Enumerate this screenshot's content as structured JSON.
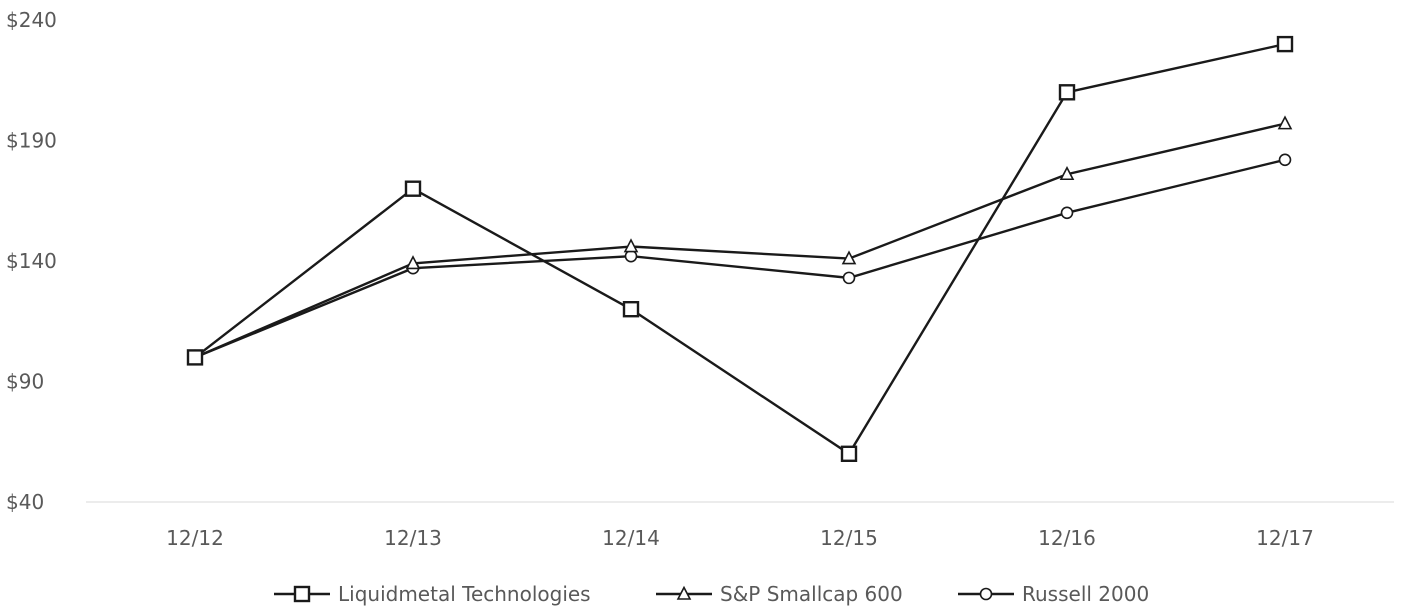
{
  "chart_data": {
    "type": "line",
    "title": "",
    "xlabel": "",
    "ylabel": "",
    "categories": [
      "12/12",
      "12/13",
      "12/14",
      "12/15",
      "12/16",
      "12/17"
    ],
    "y_ticks": [
      "$40",
      "$90",
      "$140",
      "$190",
      "$240"
    ],
    "y_tick_values": [
      40,
      90,
      140,
      190,
      240
    ],
    "ylim": [
      40,
      240
    ],
    "grid": "baseline only",
    "legend_position": "bottom",
    "series": [
      {
        "name": "Liquidmetal Technologies",
        "marker": "square",
        "values": [
          100,
          170,
          120,
          60,
          210,
          230
        ]
      },
      {
        "name": "S&P Smallcap 600",
        "marker": "triangle",
        "values": [
          100,
          139,
          146,
          141,
          176,
          197
        ]
      },
      {
        "name": "Russell 2000",
        "marker": "circle",
        "values": [
          100,
          137,
          142,
          133,
          160,
          182
        ]
      }
    ],
    "line_color": "#1a1a1a",
    "text_color": "#595959",
    "axis_color": "#d9d9d9"
  }
}
